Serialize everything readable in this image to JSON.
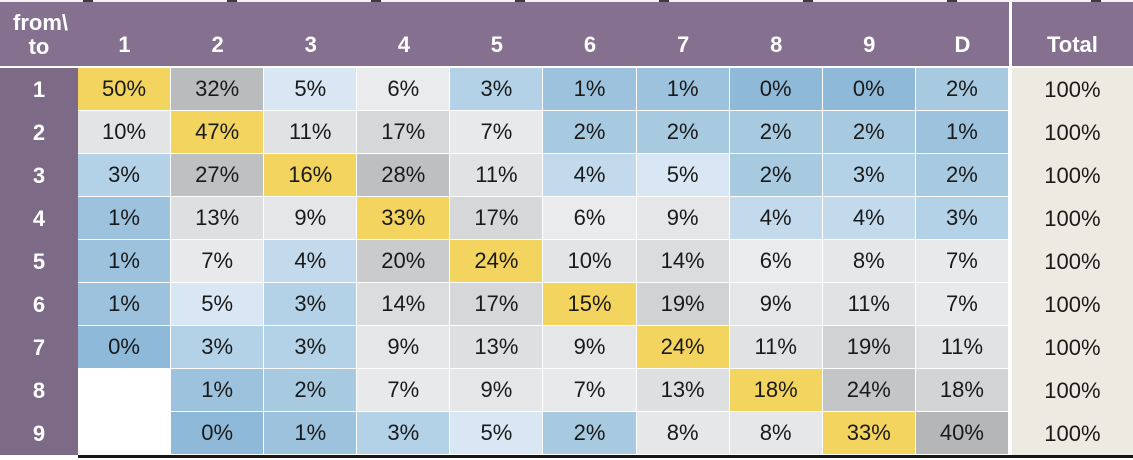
{
  "matrix": {
    "corner": {
      "line1": "from\\",
      "line2": "to"
    },
    "columns": [
      "1",
      "2",
      "3",
      "4",
      "5",
      "6",
      "7",
      "8",
      "9",
      "D"
    ],
    "total_column": "Total",
    "percent_suffix": "%",
    "rows": [
      {
        "label": "1",
        "values": [
          50,
          32,
          5,
          6,
          3,
          1,
          1,
          0,
          0,
          2
        ],
        "total": "100%"
      },
      {
        "label": "2",
        "values": [
          10,
          47,
          11,
          17,
          7,
          2,
          2,
          2,
          2,
          1
        ],
        "total": "100%"
      },
      {
        "label": "3",
        "values": [
          3,
          27,
          16,
          28,
          11,
          4,
          5,
          2,
          3,
          2
        ],
        "total": "100%"
      },
      {
        "label": "4",
        "values": [
          1,
          13,
          9,
          33,
          17,
          6,
          9,
          4,
          4,
          3
        ],
        "total": "100%"
      },
      {
        "label": "5",
        "values": [
          1,
          7,
          4,
          20,
          24,
          10,
          14,
          6,
          8,
          7
        ],
        "total": "100%"
      },
      {
        "label": "6",
        "values": [
          1,
          5,
          3,
          14,
          17,
          15,
          19,
          9,
          11,
          7
        ],
        "total": "100%"
      },
      {
        "label": "7",
        "values": [
          0,
          3,
          3,
          9,
          13,
          9,
          24,
          11,
          19,
          11
        ],
        "total": "100%"
      },
      {
        "label": "8",
        "values": [
          null,
          1,
          2,
          7,
          9,
          7,
          13,
          18,
          24,
          18
        ],
        "total": "100%"
      },
      {
        "label": "9",
        "values": [
          null,
          0,
          1,
          3,
          5,
          2,
          8,
          8,
          33,
          40
        ],
        "total": "100%"
      }
    ]
  },
  "colors": {
    "header_bg": "#857090",
    "rowheader_bg": "#7D6A86",
    "header_text": "#FFFFFF",
    "cell_text": "#1A1A1A",
    "diagonal": "#F3D45F",
    "empty": "#FFFFFF",
    "total_bg": "#EDEAE1",
    "bottom_border": "#161616",
    "blues": {
      "0": "#8FB9D8",
      "1": "#9CC2DD",
      "2": "#A7CAE1",
      "3": "#B4D2E7",
      "4": "#C3DAEC",
      "5": "#D8E7F3"
    },
    "grays": {
      "6": "#EAEBED",
      "7": "#E8E9EB",
      "8": "#E6E7E9",
      "9": "#E5E6E8",
      "10": "#E3E4E6",
      "11": "#E1E2E4",
      "13": "#DEDFE1",
      "14": "#DBDCDE",
      "17": "#D6D7D9",
      "18": "#D3D4D6",
      "19": "#D1D2D4",
      "20": "#C9CBCD",
      "24": "#C3C5C7",
      "27": "#BEC0C2",
      "28": "#BDBFC1",
      "32": "#B9BBBD",
      "33": "#B8BABC",
      "40": "#B4B6B8"
    }
  },
  "chart_data": {
    "type": "heatmap",
    "corner_label": "from\\to",
    "x_labels": [
      "1",
      "2",
      "3",
      "4",
      "5",
      "6",
      "7",
      "8",
      "9",
      "D",
      "Total"
    ],
    "y_labels": [
      "1",
      "2",
      "3",
      "4",
      "5",
      "6",
      "7",
      "8",
      "9"
    ],
    "unit": "percent",
    "matrix": [
      [
        50,
        32,
        5,
        6,
        3,
        1,
        1,
        0,
        0,
        2,
        100
      ],
      [
        10,
        47,
        11,
        17,
        7,
        2,
        2,
        2,
        2,
        1,
        100
      ],
      [
        3,
        27,
        16,
        28,
        11,
        4,
        5,
        2,
        3,
        2,
        100
      ],
      [
        1,
        13,
        9,
        33,
        17,
        6,
        9,
        4,
        4,
        3,
        100
      ],
      [
        1,
        7,
        4,
        20,
        24,
        10,
        14,
        6,
        8,
        7,
        100
      ],
      [
        1,
        5,
        3,
        14,
        17,
        15,
        19,
        9,
        11,
        7,
        100
      ],
      [
        0,
        3,
        3,
        9,
        13,
        9,
        24,
        11,
        19,
        11,
        100
      ],
      [
        null,
        1,
        2,
        7,
        9,
        7,
        13,
        18,
        24,
        18,
        100
      ],
      [
        null,
        0,
        1,
        3,
        5,
        2,
        8,
        8,
        33,
        40,
        100
      ]
    ],
    "color_encoding": "diagonal cells yellow; values <=5% blue shades (darker = lower); values >=6% gray shades (darker = higher); blank cells white",
    "legend": "none",
    "grid": "white 1px cell separators, black border under table"
  }
}
